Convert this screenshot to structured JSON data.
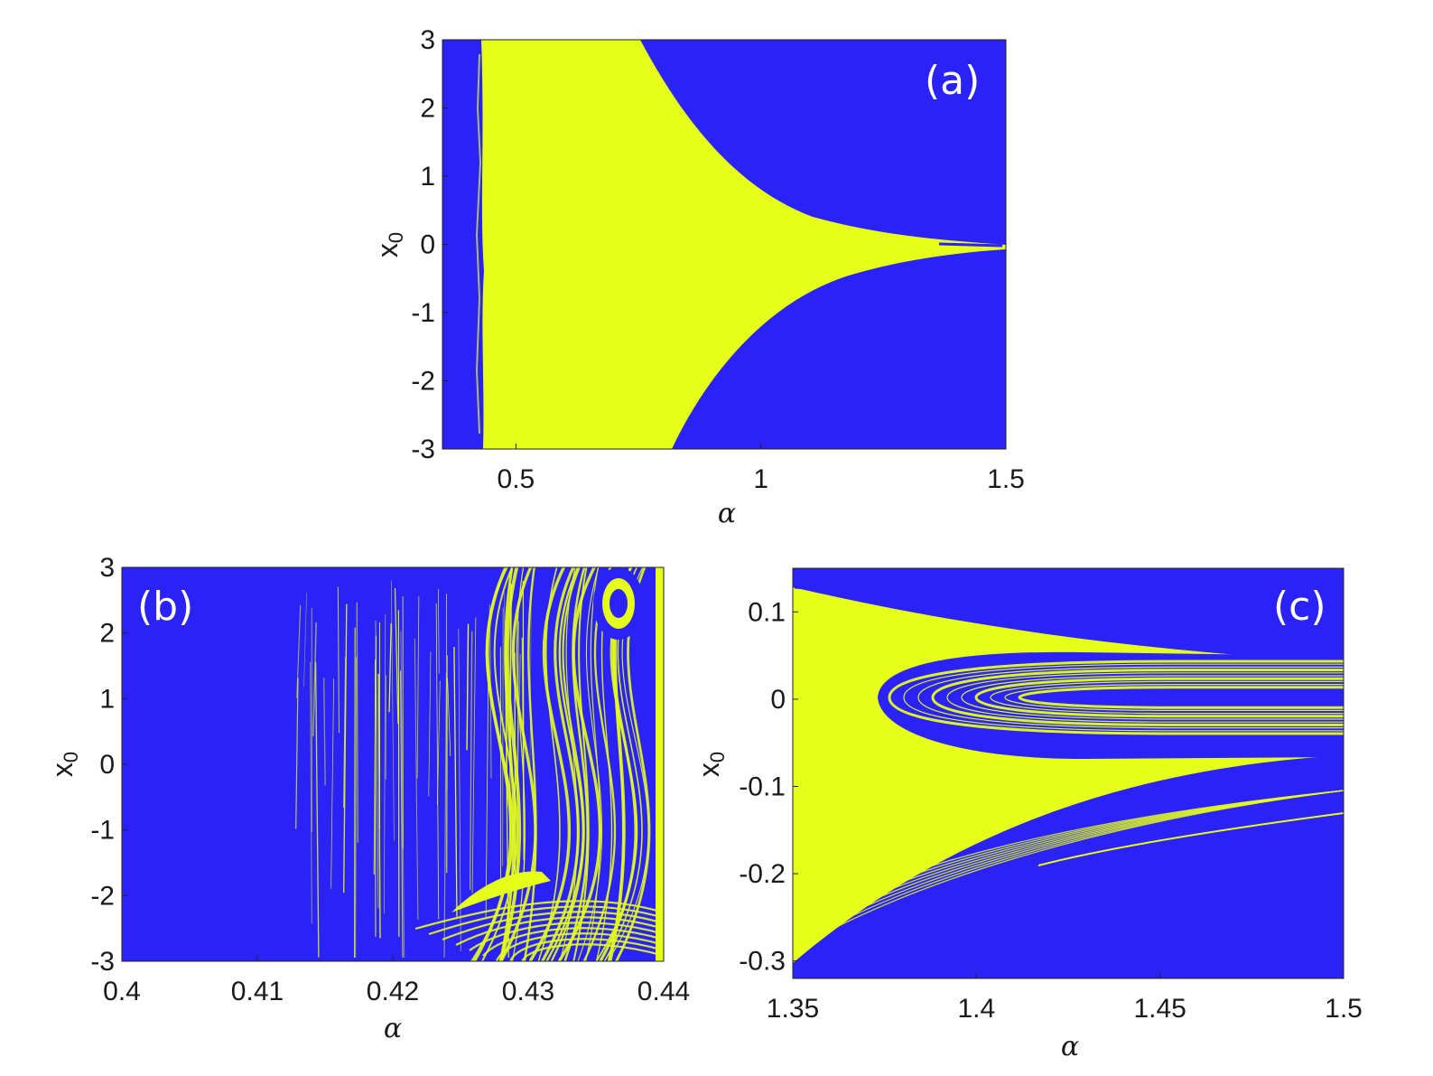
{
  "colors": {
    "basin_a": "#2a22f7",
    "basin_b": "#e6ff1a"
  },
  "chart_data": [
    {
      "type": "heatmap",
      "panel_label": "(a)",
      "xlabel": "α",
      "ylabel": "x",
      "ylabel_sub": "0",
      "xlim": [
        0.35,
        1.5
      ],
      "ylim": [
        -3,
        3
      ],
      "xticks": [
        0.5,
        1,
        1.5
      ],
      "xtick_labels": [
        "0.5",
        "1",
        "1.5"
      ],
      "yticks": [
        3,
        2,
        1,
        0,
        -1,
        -2,
        -3
      ],
      "ytick_labels": [
        "3",
        "2",
        "1",
        "0",
        "-1",
        "-2",
        "-3"
      ],
      "regions": [
        {
          "color": "basin_a",
          "description": "blue basin"
        },
        {
          "color": "basin_b",
          "description": "yellow basin"
        }
      ],
      "boundary_upper": [
        [
          0.75,
          3
        ],
        [
          0.8,
          2.5
        ],
        [
          0.9,
          1.6
        ],
        [
          1.0,
          1.05
        ],
        [
          1.1,
          0.65
        ],
        [
          1.2,
          0.38
        ],
        [
          1.3,
          0.2
        ],
        [
          1.4,
          0.08
        ],
        [
          1.5,
          0.03
        ]
      ],
      "boundary_lower": [
        [
          0.82,
          -3
        ],
        [
          0.9,
          -2.05
        ],
        [
          1.0,
          -1.35
        ],
        [
          1.1,
          -0.95
        ],
        [
          1.2,
          -0.65
        ],
        [
          1.3,
          -0.42
        ],
        [
          1.4,
          -0.2
        ],
        [
          1.5,
          -0.03
        ]
      ],
      "left_edge_alpha": 0.435
    },
    {
      "type": "heatmap",
      "panel_label": "(b)",
      "xlabel": "α",
      "ylabel": "x",
      "ylabel_sub": "0",
      "xlim": [
        0.4,
        0.44
      ],
      "ylim": [
        -3,
        3
      ],
      "xticks": [
        0.4,
        0.41,
        0.42,
        0.43,
        0.44
      ],
      "xtick_labels": [
        "0.4",
        "0.41",
        "0.42",
        "0.43",
        "0.44"
      ],
      "yticks": [
        3,
        2,
        1,
        0,
        -1,
        -2,
        -3
      ],
      "ytick_labels": [
        "3",
        "2",
        "1",
        "0",
        "-1",
        "-2",
        "-3"
      ]
    },
    {
      "type": "heatmap",
      "panel_label": "(c)",
      "xlabel": "α",
      "ylabel": "x",
      "ylabel_sub": "0",
      "xlim": [
        1.35,
        1.5
      ],
      "ylim": [
        -0.32,
        0.15
      ],
      "xticks": [
        1.35,
        1.4,
        1.45,
        1.5
      ],
      "xtick_labels": [
        "1.35",
        "1.4",
        "1.45",
        "1.5"
      ],
      "yticks": [
        0.1,
        0,
        -0.1,
        -0.2,
        -0.3
      ],
      "ytick_labels": [
        "0.1",
        "0",
        "-0.1",
        "-0.2",
        "-0.3"
      ],
      "boundary_top": [
        [
          1.35,
          0.128
        ],
        [
          1.4,
          0.09
        ],
        [
          1.45,
          0.06
        ],
        [
          1.5,
          0.04
        ]
      ],
      "boundary_bottom": [
        [
          1.35,
          -0.3
        ],
        [
          1.4,
          -0.205
        ],
        [
          1.45,
          -0.125
        ],
        [
          1.5,
          -0.067
        ]
      ],
      "inner_lobe": {
        "tip_alpha": 1.372,
        "upper": 0.05,
        "lower": -0.068
      }
    }
  ]
}
